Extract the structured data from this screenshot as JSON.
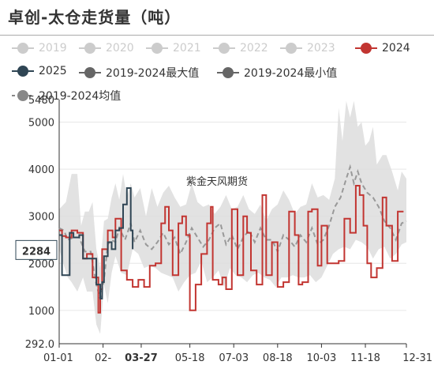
{
  "title": "卓创-太仓走货量（吨）",
  "watermark": "紫金天风期货",
  "chart_data": {
    "type": "line",
    "title": "卓创-太仓走货量（吨）",
    "x_ticks": [
      "01-01",
      "02-",
      "03-27",
      "05-18",
      "07-03",
      "08-18",
      "10-03",
      "11-18",
      "12-31"
    ],
    "y_ticks": [
      "292.0",
      "1000",
      "2000",
      "3000",
      "4000",
      "5000",
      "5480"
    ],
    "ylim": [
      292,
      5480
    ],
    "xlim_days": [
      1,
      365
    ],
    "highlight": {
      "x": "03-27",
      "y": "2284"
    },
    "series": [
      {
        "name": "2019",
        "color": "#cccccc",
        "active": false
      },
      {
        "name": "2020",
        "color": "#cccccc",
        "active": false
      },
      {
        "name": "2021",
        "color": "#cccccc",
        "active": false
      },
      {
        "name": "2022",
        "color": "#cccccc",
        "active": false
      },
      {
        "name": "2023",
        "color": "#cccccc",
        "active": false
      },
      {
        "name": "2024",
        "color": "#c23531",
        "active": true,
        "style": "step",
        "points": [
          [
            1,
            2700
          ],
          [
            4,
            2580
          ],
          [
            8,
            2550
          ],
          [
            14,
            2700
          ],
          [
            20,
            2650
          ],
          [
            26,
            2100
          ],
          [
            30,
            2200
          ],
          [
            36,
            1700
          ],
          [
            42,
            950
          ],
          [
            44,
            1450
          ],
          [
            46,
            2300
          ],
          [
            52,
            2700
          ],
          [
            57,
            2550
          ],
          [
            60,
            2950
          ],
          [
            66,
            1850
          ],
          [
            72,
            1650
          ],
          [
            78,
            1500
          ],
          [
            84,
            1650
          ],
          [
            90,
            1500
          ],
          [
            96,
            1950
          ],
          [
            102,
            2000
          ],
          [
            108,
            2850
          ],
          [
            112,
            3200
          ],
          [
            116,
            2700
          ],
          [
            120,
            1750
          ],
          [
            126,
            2850
          ],
          [
            130,
            3000
          ],
          [
            134,
            2600
          ],
          [
            138,
            1000
          ],
          [
            144,
            1550
          ],
          [
            150,
            2200
          ],
          [
            156,
            2850
          ],
          [
            160,
            3200
          ],
          [
            162,
            1650
          ],
          [
            168,
            1550
          ],
          [
            172,
            1700
          ],
          [
            176,
            1450
          ],
          [
            182,
            3150
          ],
          [
            188,
            1750
          ],
          [
            194,
            3000
          ],
          [
            198,
            2650
          ],
          [
            202,
            1850
          ],
          [
            208,
            1550
          ],
          [
            214,
            3450
          ],
          [
            218,
            1750
          ],
          [
            224,
            2450
          ],
          [
            230,
            1500
          ],
          [
            236,
            1600
          ],
          [
            242,
            3100
          ],
          [
            248,
            2600
          ],
          [
            252,
            1550
          ],
          [
            256,
            1600
          ],
          [
            262,
            3100
          ],
          [
            266,
            3150
          ],
          [
            272,
            1950
          ],
          [
            276,
            2800
          ],
          [
            282,
            2000
          ],
          [
            288,
            2000
          ],
          [
            294,
            2050
          ],
          [
            300,
            2950
          ],
          [
            306,
            2650
          ],
          [
            312,
            3650
          ],
          [
            316,
            3450
          ],
          [
            320,
            2800
          ],
          [
            324,
            2000
          ],
          [
            328,
            1700
          ],
          [
            334,
            1900
          ],
          [
            340,
            3400
          ],
          [
            344,
            2800
          ],
          [
            350,
            2050
          ],
          [
            356,
            3100
          ],
          [
            362,
            3100
          ]
        ]
      },
      {
        "name": "2025",
        "color": "#2f4554",
        "active": true,
        "style": "step",
        "points": [
          [
            1,
            2600
          ],
          [
            4,
            1750
          ],
          [
            8,
            1750
          ],
          [
            12,
            2650
          ],
          [
            16,
            2550
          ],
          [
            22,
            2600
          ],
          [
            26,
            2100
          ],
          [
            30,
            2100
          ],
          [
            36,
            2100
          ],
          [
            40,
            1550
          ],
          [
            44,
            1250
          ],
          [
            46,
            1600
          ],
          [
            48,
            2150
          ],
          [
            52,
            2450
          ],
          [
            56,
            2300
          ],
          [
            60,
            2700
          ],
          [
            64,
            2750
          ],
          [
            68,
            3250
          ],
          [
            72,
            3600
          ],
          [
            76,
            2700
          ],
          [
            78,
            2300
          ]
        ]
      },
      {
        "name": "2019-2024最大值",
        "color": "#666666",
        "active": true,
        "style": "area-upper"
      },
      {
        "name": "2019-2024最小值",
        "color": "#666666",
        "active": true,
        "style": "area-lower"
      },
      {
        "name": "2019-2024均值",
        "color": "#999999",
        "active": true,
        "style": "dashed",
        "points": [
          [
            1,
            2750
          ],
          [
            6,
            2700
          ],
          [
            10,
            2500
          ],
          [
            16,
            2550
          ],
          [
            22,
            2550
          ],
          [
            28,
            2250
          ],
          [
            34,
            2250
          ],
          [
            40,
            1550
          ],
          [
            44,
            1250
          ],
          [
            48,
            1650
          ],
          [
            52,
            2400
          ],
          [
            56,
            2500
          ],
          [
            60,
            2450
          ],
          [
            64,
            2750
          ],
          [
            70,
            2500
          ],
          [
            76,
            2850
          ],
          [
            80,
            2450
          ],
          [
            86,
            2700
          ],
          [
            92,
            2400
          ],
          [
            98,
            2300
          ],
          [
            104,
            2450
          ],
          [
            110,
            2650
          ],
          [
            116,
            2400
          ],
          [
            122,
            2550
          ],
          [
            128,
            2200
          ],
          [
            134,
            2450
          ],
          [
            140,
            2750
          ],
          [
            146,
            2550
          ],
          [
            152,
            2350
          ],
          [
            158,
            2500
          ],
          [
            164,
            2750
          ],
          [
            170,
            2850
          ],
          [
            176,
            2400
          ],
          [
            182,
            2600
          ],
          [
            188,
            2300
          ],
          [
            194,
            2550
          ],
          [
            200,
            2700
          ],
          [
            206,
            2450
          ],
          [
            212,
            2750
          ],
          [
            218,
            2500
          ],
          [
            224,
            2500
          ],
          [
            230,
            2250
          ],
          [
            236,
            2600
          ],
          [
            242,
            2500
          ],
          [
            248,
            2350
          ],
          [
            254,
            2600
          ],
          [
            260,
            2450
          ],
          [
            266,
            2750
          ],
          [
            272,
            2400
          ],
          [
            278,
            2500
          ],
          [
            284,
            2800
          ],
          [
            290,
            3200
          ],
          [
            296,
            3400
          ],
          [
            302,
            3800
          ],
          [
            306,
            4050
          ],
          [
            310,
            3700
          ],
          [
            314,
            3950
          ],
          [
            318,
            3700
          ],
          [
            324,
            3500
          ],
          [
            330,
            3400
          ],
          [
            336,
            3200
          ],
          [
            342,
            2900
          ],
          [
            348,
            2750
          ],
          [
            354,
            2500
          ],
          [
            360,
            2850
          ],
          [
            365,
            2900
          ]
        ]
      }
    ],
    "band": {
      "upper": [
        [
          1,
          3150
        ],
        [
          8,
          3300
        ],
        [
          14,
          3900
        ],
        [
          20,
          3900
        ],
        [
          24,
          2800
        ],
        [
          28,
          3100
        ],
        [
          32,
          3100
        ],
        [
          36,
          3300
        ],
        [
          40,
          2300
        ],
        [
          44,
          1900
        ],
        [
          48,
          2900
        ],
        [
          52,
          2950
        ],
        [
          56,
          3400
        ],
        [
          60,
          3700
        ],
        [
          64,
          3350
        ],
        [
          68,
          3900
        ],
        [
          72,
          3400
        ],
        [
          76,
          3700
        ],
        [
          80,
          3400
        ],
        [
          86,
          3600
        ],
        [
          92,
          3000
        ],
        [
          98,
          3600
        ],
        [
          104,
          3200
        ],
        [
          110,
          3500
        ],
        [
          116,
          3650
        ],
        [
          122,
          3400
        ],
        [
          128,
          3200
        ],
        [
          134,
          3250
        ],
        [
          140,
          3700
        ],
        [
          146,
          3300
        ],
        [
          152,
          3200
        ],
        [
          158,
          3250
        ],
        [
          164,
          3050
        ],
        [
          170,
          3200
        ],
        [
          176,
          3450
        ],
        [
          182,
          3150
        ],
        [
          188,
          3200
        ],
        [
          194,
          3450
        ],
        [
          200,
          3150
        ],
        [
          206,
          3050
        ],
        [
          212,
          3250
        ],
        [
          218,
          2900
        ],
        [
          224,
          3150
        ],
        [
          230,
          3250
        ],
        [
          236,
          3550
        ],
        [
          242,
          3350
        ],
        [
          248,
          3050
        ],
        [
          254,
          3200
        ],
        [
          260,
          3250
        ],
        [
          266,
          3700
        ],
        [
          272,
          3400
        ],
        [
          278,
          3450
        ],
        [
          284,
          3350
        ],
        [
          290,
          3800
        ],
        [
          294,
          5300
        ],
        [
          298,
          4600
        ],
        [
          302,
          5450
        ],
        [
          306,
          5100
        ],
        [
          310,
          5450
        ],
        [
          314,
          4900
        ],
        [
          318,
          5000
        ],
        [
          322,
          4500
        ],
        [
          326,
          4600
        ],
        [
          330,
          4900
        ],
        [
          334,
          4100
        ],
        [
          340,
          4300
        ],
        [
          344,
          4300
        ],
        [
          350,
          3950
        ],
        [
          356,
          3550
        ],
        [
          360,
          3950
        ],
        [
          365,
          3800
        ]
      ],
      "lower": [
        [
          1,
          2300
        ],
        [
          6,
          1950
        ],
        [
          10,
          1700
        ],
        [
          14,
          1600
        ],
        [
          20,
          1400
        ],
        [
          26,
          1700
        ],
        [
          30,
          1400
        ],
        [
          36,
          1400
        ],
        [
          40,
          700
        ],
        [
          44,
          500
        ],
        [
          48,
          1550
        ],
        [
          52,
          1150
        ],
        [
          56,
          1800
        ],
        [
          60,
          2150
        ],
        [
          66,
          1800
        ],
        [
          72,
          1750
        ],
        [
          78,
          2300
        ],
        [
          84,
          2200
        ],
        [
          90,
          1900
        ],
        [
          96,
          1950
        ],
        [
          102,
          1900
        ],
        [
          108,
          1800
        ],
        [
          114,
          1750
        ],
        [
          120,
          1700
        ],
        [
          126,
          1400
        ],
        [
          132,
          1600
        ],
        [
          138,
          1750
        ],
        [
          144,
          1800
        ],
        [
          150,
          2050
        ],
        [
          156,
          1600
        ],
        [
          162,
          1700
        ],
        [
          168,
          1850
        ],
        [
          174,
          1500
        ],
        [
          180,
          1900
        ],
        [
          186,
          1750
        ],
        [
          192,
          1700
        ],
        [
          198,
          1600
        ],
        [
          204,
          1750
        ],
        [
          210,
          1800
        ],
        [
          216,
          1700
        ],
        [
          222,
          1650
        ],
        [
          228,
          1500
        ],
        [
          234,
          1700
        ],
        [
          240,
          1700
        ],
        [
          246,
          1750
        ],
        [
          252,
          1700
        ],
        [
          258,
          1700
        ],
        [
          264,
          1750
        ],
        [
          270,
          1600
        ],
        [
          276,
          1700
        ],
        [
          282,
          1950
        ],
        [
          288,
          2200
        ],
        [
          294,
          2300
        ],
        [
          300,
          2350
        ],
        [
          306,
          2300
        ],
        [
          312,
          2500
        ],
        [
          318,
          2450
        ],
        [
          324,
          2350
        ],
        [
          330,
          2100
        ],
        [
          336,
          2300
        ],
        [
          342,
          2350
        ],
        [
          348,
          2100
        ],
        [
          354,
          2200
        ],
        [
          360,
          2400
        ],
        [
          365,
          2450
        ]
      ]
    }
  }
}
